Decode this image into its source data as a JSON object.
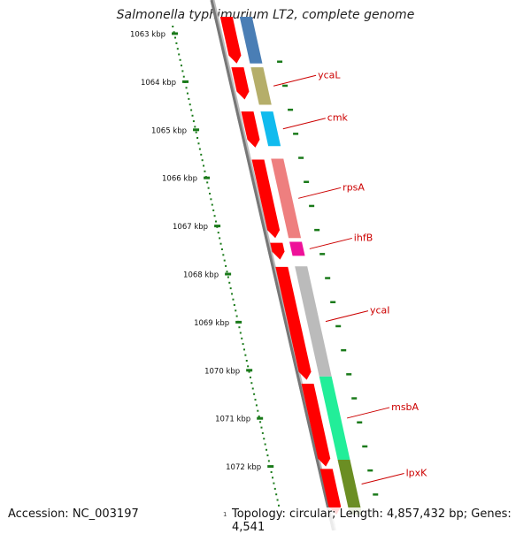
{
  "title": "Salmonella typhimurium LT2, complete genome",
  "footer": {
    "accession": "Accession: NC_003197",
    "summary": "Topology: circular; Length: 4,857,432 bp; Genes: 4,541",
    "mark": "1"
  },
  "ruler": {
    "unit": "kbp",
    "ticks": [
      {
        "kbp": 1063,
        "label": "1063 kbp"
      },
      {
        "kbp": 1064,
        "label": "1064 kbp"
      },
      {
        "kbp": 1065,
        "label": "1065 kbp"
      },
      {
        "kbp": 1066,
        "label": "1066 kbp"
      },
      {
        "kbp": 1067,
        "label": "1067 kbp"
      },
      {
        "kbp": 1068,
        "label": "1068 kbp"
      },
      {
        "kbp": 1069,
        "label": "1069 kbp"
      },
      {
        "kbp": 1070,
        "label": "1070 kbp"
      },
      {
        "kbp": 1071,
        "label": "1071 kbp"
      },
      {
        "kbp": 1072,
        "label": "1072 kbp"
      }
    ]
  },
  "colors": {
    "ruler": "#1a7a1a",
    "label": "#cc0000",
    "cds": "#ff0000",
    "backbone": "#777777"
  },
  "cds_track": [
    {
      "start": 1062.65,
      "end": 1063.62
    },
    {
      "start": 1063.7,
      "end": 1064.37
    },
    {
      "start": 1064.62,
      "end": 1065.37
    },
    {
      "start": 1065.62,
      "end": 1067.25
    },
    {
      "start": 1067.35,
      "end": 1067.7
    },
    {
      "start": 1067.85,
      "end": 1070.2
    },
    {
      "start": 1070.28,
      "end": 1072.0
    },
    {
      "start": 1072.05,
      "end": 1073.0
    }
  ],
  "genes": [
    {
      "name": "",
      "start": 1062.65,
      "end": 1063.62,
      "color": "#4a7eb5"
    },
    {
      "name": "ycaL",
      "start": 1063.7,
      "end": 1064.48,
      "color": "#b5ae6a"
    },
    {
      "name": "cmk",
      "start": 1064.62,
      "end": 1065.34,
      "color": "#11bbee"
    },
    {
      "name": "rpsA",
      "start": 1065.6,
      "end": 1067.25,
      "color": "#ee7f7f"
    },
    {
      "name": "ihfB",
      "start": 1067.33,
      "end": 1067.62,
      "color": "#ee1199"
    },
    {
      "name": "ycaI",
      "start": 1067.84,
      "end": 1070.13,
      "color": "#bbbbbb"
    },
    {
      "name": "msbA",
      "start": 1070.13,
      "end": 1071.86,
      "color": "#22ee99"
    },
    {
      "name": "lpxK",
      "start": 1071.86,
      "end": 1073.0,
      "color": "#6b8e23"
    }
  ]
}
